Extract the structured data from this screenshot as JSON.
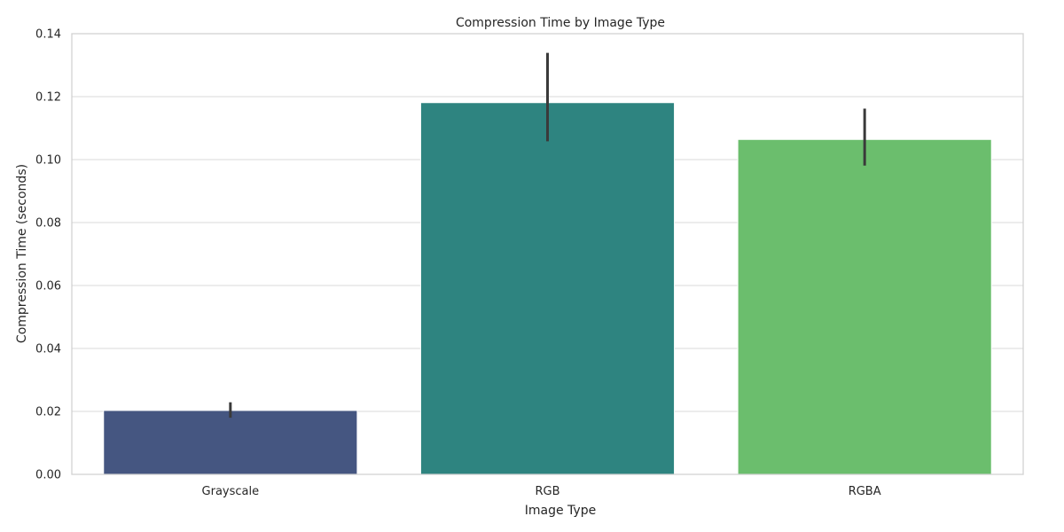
{
  "chart_data": {
    "type": "bar",
    "title": "Compression Time by Image Type",
    "xlabel": "Image Type",
    "ylabel": "Compression Time (seconds)",
    "categories": [
      "Grayscale",
      "RGB",
      "RGBA"
    ],
    "values": [
      0.0203,
      0.1181,
      0.1064
    ],
    "error_low": [
      0.018,
      0.1058,
      0.0981
    ],
    "error_high": [
      0.0229,
      0.1339,
      0.1162
    ],
    "ylim": [
      0,
      0.14
    ],
    "yticks": [
      0.0,
      0.02,
      0.04,
      0.06,
      0.08,
      0.1,
      0.12,
      0.14
    ],
    "ytick_labels": [
      "0.00",
      "0.02",
      "0.04",
      "0.06",
      "0.08",
      "0.10",
      "0.12",
      "0.14"
    ],
    "bar_colors": [
      "#455681",
      "#2e8480",
      "#6bbe6d"
    ],
    "grid": true,
    "grid_axis": "y",
    "legend": "none"
  },
  "theme": {
    "grid_color": "#d9d9d9",
    "spine_color": "#d0d0d0",
    "error_color": "#3a3a3a",
    "text_color": "#262626"
  }
}
